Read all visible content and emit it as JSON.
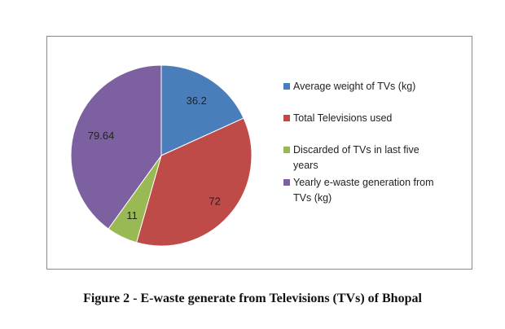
{
  "caption": "Figure 2 - E-waste generate from Televisions (TVs) of Bhopal",
  "chart_data": {
    "type": "pie",
    "title": "",
    "legend_position": "right",
    "slices": [
      {
        "label": "Average weight of TVs (kg)",
        "value": 36.2,
        "display": "36.2",
        "color": "#4a7ebb"
      },
      {
        "label": "Total Televisions used",
        "value": 72,
        "display": "72",
        "color": "#be4b48"
      },
      {
        "label": "Discarded of TVs in last five years",
        "value": 11,
        "display": "11",
        "color": "#98b954"
      },
      {
        "label": "Yearly e-waste generation from TVs (kg)",
        "value": 79.64,
        "display": "79.64",
        "color": "#7d60a0"
      }
    ]
  }
}
